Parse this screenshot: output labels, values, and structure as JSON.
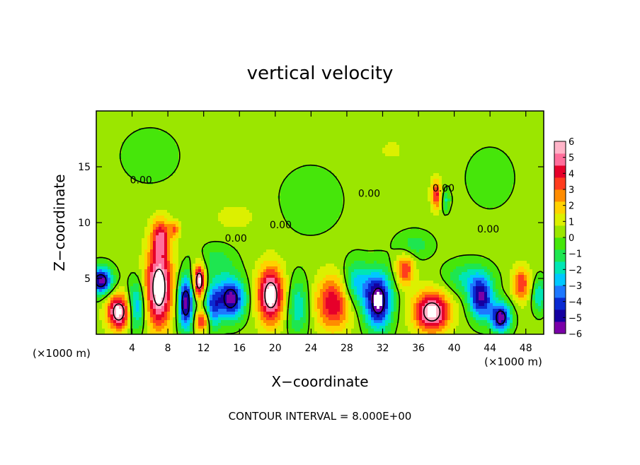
{
  "chart_data": {
    "type": "heatmap",
    "title": "vertical velocity",
    "xlabel": "X−coordinate",
    "ylabel": "Z−coordinate",
    "x_unit_left": "(×1000 m)",
    "x_unit_right": "(×1000 m)",
    "xlim": [
      0,
      50
    ],
    "ylim": [
      0,
      20
    ],
    "x_ticks": [
      4,
      8,
      12,
      16,
      20,
      24,
      28,
      32,
      36,
      40,
      44,
      48
    ],
    "x_tick_labels": [
      "4",
      "8",
      "12",
      "16",
      "20",
      "24",
      "28",
      "32",
      "36",
      "40",
      "44",
      "48"
    ],
    "y_ticks": [
      5,
      10,
      15
    ],
    "y_tick_labels": [
      "5",
      "10",
      "15"
    ],
    "contour_interval_text": "CONTOUR INTERVAL = 8.000E+00",
    "contour_labels": [
      {
        "text": "0.00",
        "x": 5.0,
        "y": 13.5
      },
      {
        "text": "0.00",
        "x": 15.6,
        "y": 8.3
      },
      {
        "text": "0.00",
        "x": 20.6,
        "y": 9.5
      },
      {
        "text": "0.00",
        "x": 30.5,
        "y": 12.3
      },
      {
        "text": "0.00",
        "x": 38.8,
        "y": 12.8
      },
      {
        "text": "0.00",
        "x": 43.8,
        "y": 9.1
      }
    ],
    "colorbar": {
      "range": [
        -6,
        6
      ],
      "tick_labels": [
        "6",
        "5",
        "4",
        "3",
        "2",
        "1",
        "0",
        "−1",
        "−2",
        "−3",
        "−4",
        "−5",
        "−6"
      ],
      "colors": [
        "#7a00a8",
        "#1400a0",
        "#0a2ad2",
        "#1e78ff",
        "#00c8ff",
        "#00e6b4",
        "#1ee650",
        "#46e60a",
        "#9be600",
        "#dcf000",
        "#ffd200",
        "#ff8c00",
        "#ff3c1e",
        "#e6002a",
        "#ff6e9b",
        "#ffb4c8"
      ]
    },
    "background_value": 0.3,
    "features": [
      {
        "x": 0.5,
        "z": 4.8,
        "w": -6.0,
        "sx": 1.3,
        "sz": 1.2
      },
      {
        "x": 2.5,
        "z": 2.0,
        "w": 6.0,
        "sx": 1.3,
        "sz": 1.6
      },
      {
        "x": 4.5,
        "z": 2.5,
        "w": -3.5,
        "sx": 1.0,
        "sz": 2.2
      },
      {
        "x": 7.0,
        "z": 4.2,
        "w": 6.5,
        "sx": 1.5,
        "sz": 3.6
      },
      {
        "x": 7.2,
        "z": 8.8,
        "w": 3.5,
        "sx": 1.0,
        "sz": 1.6
      },
      {
        "x": 8.8,
        "z": 9.4,
        "w": 2.5,
        "sx": 0.6,
        "sz": 0.7
      },
      {
        "x": 10.0,
        "z": 2.8,
        "w": -6.0,
        "sx": 0.9,
        "sz": 2.4
      },
      {
        "x": 11.5,
        "z": 4.8,
        "w": 6.0,
        "sx": 0.7,
        "sz": 1.5
      },
      {
        "x": 11.8,
        "z": 1.2,
        "w": 4.0,
        "sx": 0.8,
        "sz": 1.0
      },
      {
        "x": 13.0,
        "z": 2.5,
        "w": -3.5,
        "sx": 0.9,
        "sz": 2.0
      },
      {
        "x": 15.0,
        "z": 3.2,
        "w": -6.0,
        "sx": 1.6,
        "sz": 1.8
      },
      {
        "x": 13.5,
        "z": 6.5,
        "w": -1.5,
        "sx": 2.0,
        "sz": 1.5
      },
      {
        "x": 19.5,
        "z": 3.5,
        "w": 6.2,
        "sx": 1.5,
        "sz": 2.5
      },
      {
        "x": 22.5,
        "z": 2.5,
        "w": -2.5,
        "sx": 1.3,
        "sz": 2.5
      },
      {
        "x": 26.5,
        "z": 2.8,
        "w": 4.2,
        "sx": 2.0,
        "sz": 2.4
      },
      {
        "x": 29.0,
        "z": 4.5,
        "w": -3.0,
        "sx": 1.5,
        "sz": 2.0
      },
      {
        "x": 31.5,
        "z": 3.0,
        "w": -6.5,
        "sx": 1.5,
        "sz": 2.5
      },
      {
        "x": 34.5,
        "z": 5.8,
        "w": 3.5,
        "sx": 1.0,
        "sz": 1.4
      },
      {
        "x": 37.5,
        "z": 2.0,
        "w": 6.0,
        "sx": 2.0,
        "sz": 1.8
      },
      {
        "x": 38.0,
        "z": 12.5,
        "w": 3.8,
        "sx": 0.6,
        "sz": 1.3
      },
      {
        "x": 39.0,
        "z": 12.0,
        "w": -2.0,
        "sx": 0.5,
        "sz": 1.0
      },
      {
        "x": 41.5,
        "z": 5.0,
        "w": -2.0,
        "sx": 2.5,
        "sz": 1.5
      },
      {
        "x": 43.0,
        "z": 3.2,
        "w": -5.5,
        "sx": 1.3,
        "sz": 1.8
      },
      {
        "x": 45.2,
        "z": 1.5,
        "w": -6.0,
        "sx": 1.1,
        "sz": 1.3
      },
      {
        "x": 47.5,
        "z": 4.5,
        "w": 3.5,
        "sx": 1.0,
        "sz": 1.5
      },
      {
        "x": 49.5,
        "z": 3.5,
        "w": -2.5,
        "sx": 0.8,
        "sz": 1.5
      },
      {
        "x": 35.5,
        "z": 8.0,
        "w": -1.5,
        "sx": 2.0,
        "sz": 1.2
      },
      {
        "x": 24.0,
        "z": 12.0,
        "w": -0.9,
        "sx": 3.5,
        "sz": 3.0
      },
      {
        "x": 15.5,
        "z": 10.5,
        "w": 0.7,
        "sx": 3.0,
        "sz": 1.5
      },
      {
        "x": 44.0,
        "z": 14.0,
        "w": -0.7,
        "sx": 3.0,
        "sz": 3.0
      },
      {
        "x": 6.0,
        "z": 16.0,
        "w": -0.6,
        "sx": 4.0,
        "sz": 3.0
      },
      {
        "x": 33.0,
        "z": 16.5,
        "w": 0.5,
        "sx": 3.0,
        "sz": 2.0
      }
    ]
  }
}
